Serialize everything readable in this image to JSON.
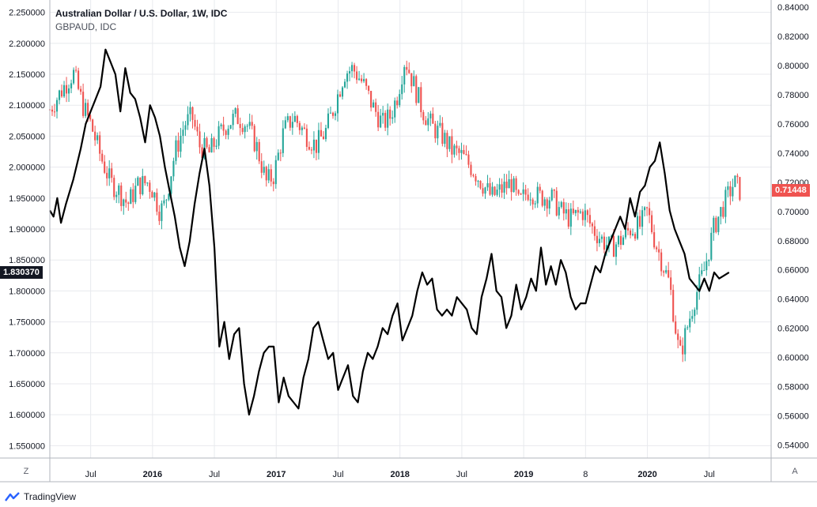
{
  "legend": {
    "main_title": "Australian Dollar / U.S. Dollar, 1W, IDC",
    "compare_title": "GBPAUD, IDC"
  },
  "price_tags": {
    "left_last": "1.830370",
    "right_last": "0.71448"
  },
  "corner": {
    "left": "Z",
    "right": "A"
  },
  "brand": {
    "name": "TradingView"
  },
  "colors": {
    "up": "#26a69a",
    "down": "#ef5350",
    "line": "#000000",
    "grid": "#e8eaee",
    "axis": "#b2b5be",
    "left_tag": "#131722",
    "right_tag": "#ef5350"
  },
  "chart_data": {
    "type": "candlestick+line",
    "title": "Australian Dollar / U.S. Dollar, 1W, IDC",
    "subtitle": "GBPAUD, IDC",
    "x_ticks": [
      {
        "label": "Jul",
        "t": 2015.5,
        "strong": false
      },
      {
        "label": "2016",
        "t": 2016.0,
        "strong": true
      },
      {
        "label": "Jul",
        "t": 2016.5,
        "strong": false
      },
      {
        "label": "2017",
        "t": 2017.0,
        "strong": true
      },
      {
        "label": "Jul",
        "t": 2017.5,
        "strong": false
      },
      {
        "label": "2018",
        "t": 2018.0,
        "strong": true
      },
      {
        "label": "Jul",
        "t": 2018.5,
        "strong": false
      },
      {
        "label": "2019",
        "t": 2019.0,
        "strong": true
      },
      {
        "label": "8",
        "t": 2019.5,
        "strong": false
      },
      {
        "label": "2020",
        "t": 2020.0,
        "strong": true
      },
      {
        "label": "Jul",
        "t": 2020.5,
        "strong": false
      }
    ],
    "x_range": [
      2015.17,
      2021.0
    ],
    "left_axis": {
      "series": "GBPAUD",
      "range": [
        1.53,
        2.27
      ],
      "ticks": [
        "2.250000",
        "2.200000",
        "2.150000",
        "2.100000",
        "2.050000",
        "2.000000",
        "1.950000",
        "1.900000",
        "1.850000",
        "1.800000",
        "1.750000",
        "1.700000",
        "1.650000",
        "1.600000",
        "1.550000"
      ]
    },
    "right_axis": {
      "series": "AUDUSD",
      "range": [
        0.531,
        0.845
      ],
      "ticks": [
        "0.84000",
        "0.82000",
        "0.80000",
        "0.78000",
        "0.76000",
        "0.74000",
        "0.72000",
        "0.70000",
        "0.68000",
        "0.66000",
        "0.64000",
        "0.62000",
        "0.60000",
        "0.58000",
        "0.56000",
        "0.54000"
      ]
    },
    "audusd_anchors": [
      [
        2015.17,
        0.77
      ],
      [
        2015.28,
        0.785
      ],
      [
        2015.36,
        0.795
      ],
      [
        2015.44,
        0.772
      ],
      [
        2015.5,
        0.76
      ],
      [
        2015.58,
        0.738
      ],
      [
        2015.66,
        0.72
      ],
      [
        2015.72,
        0.715
      ],
      [
        2015.8,
        0.705
      ],
      [
        2015.88,
        0.718
      ],
      [
        2015.96,
        0.72
      ],
      [
        2016.0,
        0.715
      ],
      [
        2016.06,
        0.7
      ],
      [
        2016.1,
        0.705
      ],
      [
        2016.18,
        0.74
      ],
      [
        2016.26,
        0.76
      ],
      [
        2016.32,
        0.765
      ],
      [
        2016.38,
        0.745
      ],
      [
        2016.46,
        0.74
      ],
      [
        2016.52,
        0.75
      ],
      [
        2016.6,
        0.76
      ],
      [
        2016.68,
        0.765
      ],
      [
        2016.76,
        0.76
      ],
      [
        2016.84,
        0.745
      ],
      [
        2016.92,
        0.72
      ],
      [
        2016.98,
        0.725
      ],
      [
        2017.06,
        0.755
      ],
      [
        2017.14,
        0.765
      ],
      [
        2017.22,
        0.755
      ],
      [
        2017.32,
        0.745
      ],
      [
        2017.4,
        0.755
      ],
      [
        2017.48,
        0.775
      ],
      [
        2017.55,
        0.795
      ],
      [
        2017.62,
        0.798
      ],
      [
        2017.7,
        0.788
      ],
      [
        2017.78,
        0.772
      ],
      [
        2017.86,
        0.76
      ],
      [
        2017.92,
        0.765
      ],
      [
        2017.98,
        0.78
      ],
      [
        2018.04,
        0.805
      ],
      [
        2018.1,
        0.79
      ],
      [
        2018.18,
        0.77
      ],
      [
        2018.26,
        0.758
      ],
      [
        2018.34,
        0.752
      ],
      [
        2018.42,
        0.742
      ],
      [
        2018.5,
        0.738
      ],
      [
        2018.58,
        0.73
      ],
      [
        2018.66,
        0.72
      ],
      [
        2018.74,
        0.71
      ],
      [
        2018.82,
        0.715
      ],
      [
        2018.9,
        0.72
      ],
      [
        2018.96,
        0.705
      ],
      [
        2019.04,
        0.715
      ],
      [
        2019.12,
        0.71
      ],
      [
        2019.22,
        0.71
      ],
      [
        2019.3,
        0.7
      ],
      [
        2019.38,
        0.695
      ],
      [
        2019.48,
        0.7
      ],
      [
        2019.56,
        0.688
      ],
      [
        2019.64,
        0.68
      ],
      [
        2019.7,
        0.675
      ],
      [
        2019.78,
        0.68
      ],
      [
        2019.86,
        0.688
      ],
      [
        2019.94,
        0.69
      ],
      [
        2020.0,
        0.7
      ],
      [
        2020.06,
        0.68
      ],
      [
        2020.12,
        0.665
      ],
      [
        2020.18,
        0.65
      ],
      [
        2020.22,
        0.625
      ],
      [
        2020.26,
        0.6
      ],
      [
        2020.32,
        0.62
      ],
      [
        2020.38,
        0.64
      ],
      [
        2020.46,
        0.66
      ],
      [
        2020.54,
        0.69
      ],
      [
        2020.62,
        0.705
      ],
      [
        2020.7,
        0.72
      ],
      [
        2020.75,
        0.714
      ]
    ],
    "gbpaud_line": [
      [
        2015.17,
        1.93
      ],
      [
        2015.2,
        1.92
      ],
      [
        2015.23,
        1.95
      ],
      [
        2015.26,
        1.91
      ],
      [
        2015.3,
        1.94
      ],
      [
        2015.36,
        1.98
      ],
      [
        2015.42,
        2.03
      ],
      [
        2015.46,
        2.07
      ],
      [
        2015.5,
        2.09
      ],
      [
        2015.54,
        2.11
      ],
      [
        2015.58,
        2.13
      ],
      [
        2015.62,
        2.19
      ],
      [
        2015.66,
        2.17
      ],
      [
        2015.7,
        2.15
      ],
      [
        2015.74,
        2.09
      ],
      [
        2015.78,
        2.16
      ],
      [
        2015.82,
        2.12
      ],
      [
        2015.86,
        2.11
      ],
      [
        2015.9,
        2.08
      ],
      [
        2015.94,
        2.04
      ],
      [
        2015.98,
        2.1
      ],
      [
        2016.02,
        2.08
      ],
      [
        2016.06,
        2.05
      ],
      [
        2016.1,
        2.0
      ],
      [
        2016.14,
        1.96
      ],
      [
        2016.18,
        1.92
      ],
      [
        2016.22,
        1.87
      ],
      [
        2016.26,
        1.84
      ],
      [
        2016.3,
        1.88
      ],
      [
        2016.34,
        1.94
      ],
      [
        2016.38,
        1.99
      ],
      [
        2016.42,
        2.03
      ],
      [
        2016.46,
        1.97
      ],
      [
        2016.5,
        1.87
      ],
      [
        2016.54,
        1.71
      ],
      [
        2016.58,
        1.75
      ],
      [
        2016.62,
        1.69
      ],
      [
        2016.66,
        1.73
      ],
      [
        2016.7,
        1.74
      ],
      [
        2016.74,
        1.65
      ],
      [
        2016.78,
        1.6
      ],
      [
        2016.82,
        1.63
      ],
      [
        2016.86,
        1.67
      ],
      [
        2016.9,
        1.7
      ],
      [
        2016.94,
        1.71
      ],
      [
        2016.98,
        1.71
      ],
      [
        2017.02,
        1.62
      ],
      [
        2017.06,
        1.66
      ],
      [
        2017.1,
        1.63
      ],
      [
        2017.14,
        1.62
      ],
      [
        2017.18,
        1.61
      ],
      [
        2017.22,
        1.66
      ],
      [
        2017.26,
        1.69
      ],
      [
        2017.3,
        1.74
      ],
      [
        2017.34,
        1.75
      ],
      [
        2017.38,
        1.72
      ],
      [
        2017.42,
        1.69
      ],
      [
        2017.46,
        1.7
      ],
      [
        2017.5,
        1.64
      ],
      [
        2017.54,
        1.66
      ],
      [
        2017.58,
        1.68
      ],
      [
        2017.62,
        1.63
      ],
      [
        2017.66,
        1.62
      ],
      [
        2017.7,
        1.67
      ],
      [
        2017.74,
        1.7
      ],
      [
        2017.78,
        1.69
      ],
      [
        2017.82,
        1.71
      ],
      [
        2017.86,
        1.74
      ],
      [
        2017.9,
        1.73
      ],
      [
        2017.94,
        1.76
      ],
      [
        2017.98,
        1.78
      ],
      [
        2018.02,
        1.72
      ],
      [
        2018.06,
        1.74
      ],
      [
        2018.1,
        1.76
      ],
      [
        2018.14,
        1.8
      ],
      [
        2018.18,
        1.83
      ],
      [
        2018.22,
        1.81
      ],
      [
        2018.26,
        1.82
      ],
      [
        2018.3,
        1.77
      ],
      [
        2018.34,
        1.76
      ],
      [
        2018.38,
        1.77
      ],
      [
        2018.42,
        1.76
      ],
      [
        2018.46,
        1.79
      ],
      [
        2018.5,
        1.78
      ],
      [
        2018.54,
        1.77
      ],
      [
        2018.58,
        1.74
      ],
      [
        2018.62,
        1.73
      ],
      [
        2018.66,
        1.79
      ],
      [
        2018.7,
        1.82
      ],
      [
        2018.74,
        1.86
      ],
      [
        2018.78,
        1.8
      ],
      [
        2018.82,
        1.79
      ],
      [
        2018.86,
        1.74
      ],
      [
        2018.9,
        1.76
      ],
      [
        2018.94,
        1.81
      ],
      [
        2018.98,
        1.77
      ],
      [
        2019.02,
        1.79
      ],
      [
        2019.06,
        1.82
      ],
      [
        2019.1,
        1.8
      ],
      [
        2019.14,
        1.87
      ],
      [
        2019.18,
        1.81
      ],
      [
        2019.22,
        1.84
      ],
      [
        2019.26,
        1.81
      ],
      [
        2019.3,
        1.85
      ],
      [
        2019.34,
        1.83
      ],
      [
        2019.38,
        1.79
      ],
      [
        2019.42,
        1.77
      ],
      [
        2019.46,
        1.78
      ],
      [
        2019.5,
        1.78
      ],
      [
        2019.54,
        1.81
      ],
      [
        2019.58,
        1.84
      ],
      [
        2019.62,
        1.83
      ],
      [
        2019.66,
        1.86
      ],
      [
        2019.7,
        1.88
      ],
      [
        2019.74,
        1.9
      ],
      [
        2019.78,
        1.92
      ],
      [
        2019.82,
        1.9
      ],
      [
        2019.86,
        1.95
      ],
      [
        2019.9,
        1.92
      ],
      [
        2019.94,
        1.96
      ],
      [
        2019.98,
        1.97
      ],
      [
        2020.02,
        2.0
      ],
      [
        2020.06,
        2.01
      ],
      [
        2020.1,
        2.04
      ],
      [
        2020.14,
        1.99
      ],
      [
        2020.18,
        1.93
      ],
      [
        2020.22,
        1.9
      ],
      [
        2020.26,
        1.88
      ],
      [
        2020.3,
        1.86
      ],
      [
        2020.34,
        1.82
      ],
      [
        2020.38,
        1.81
      ],
      [
        2020.42,
        1.8
      ],
      [
        2020.46,
        1.82
      ],
      [
        2020.5,
        1.8
      ],
      [
        2020.54,
        1.83
      ],
      [
        2020.58,
        1.82
      ],
      [
        2020.62,
        1.825
      ],
      [
        2020.66,
        1.83
      ]
    ]
  }
}
